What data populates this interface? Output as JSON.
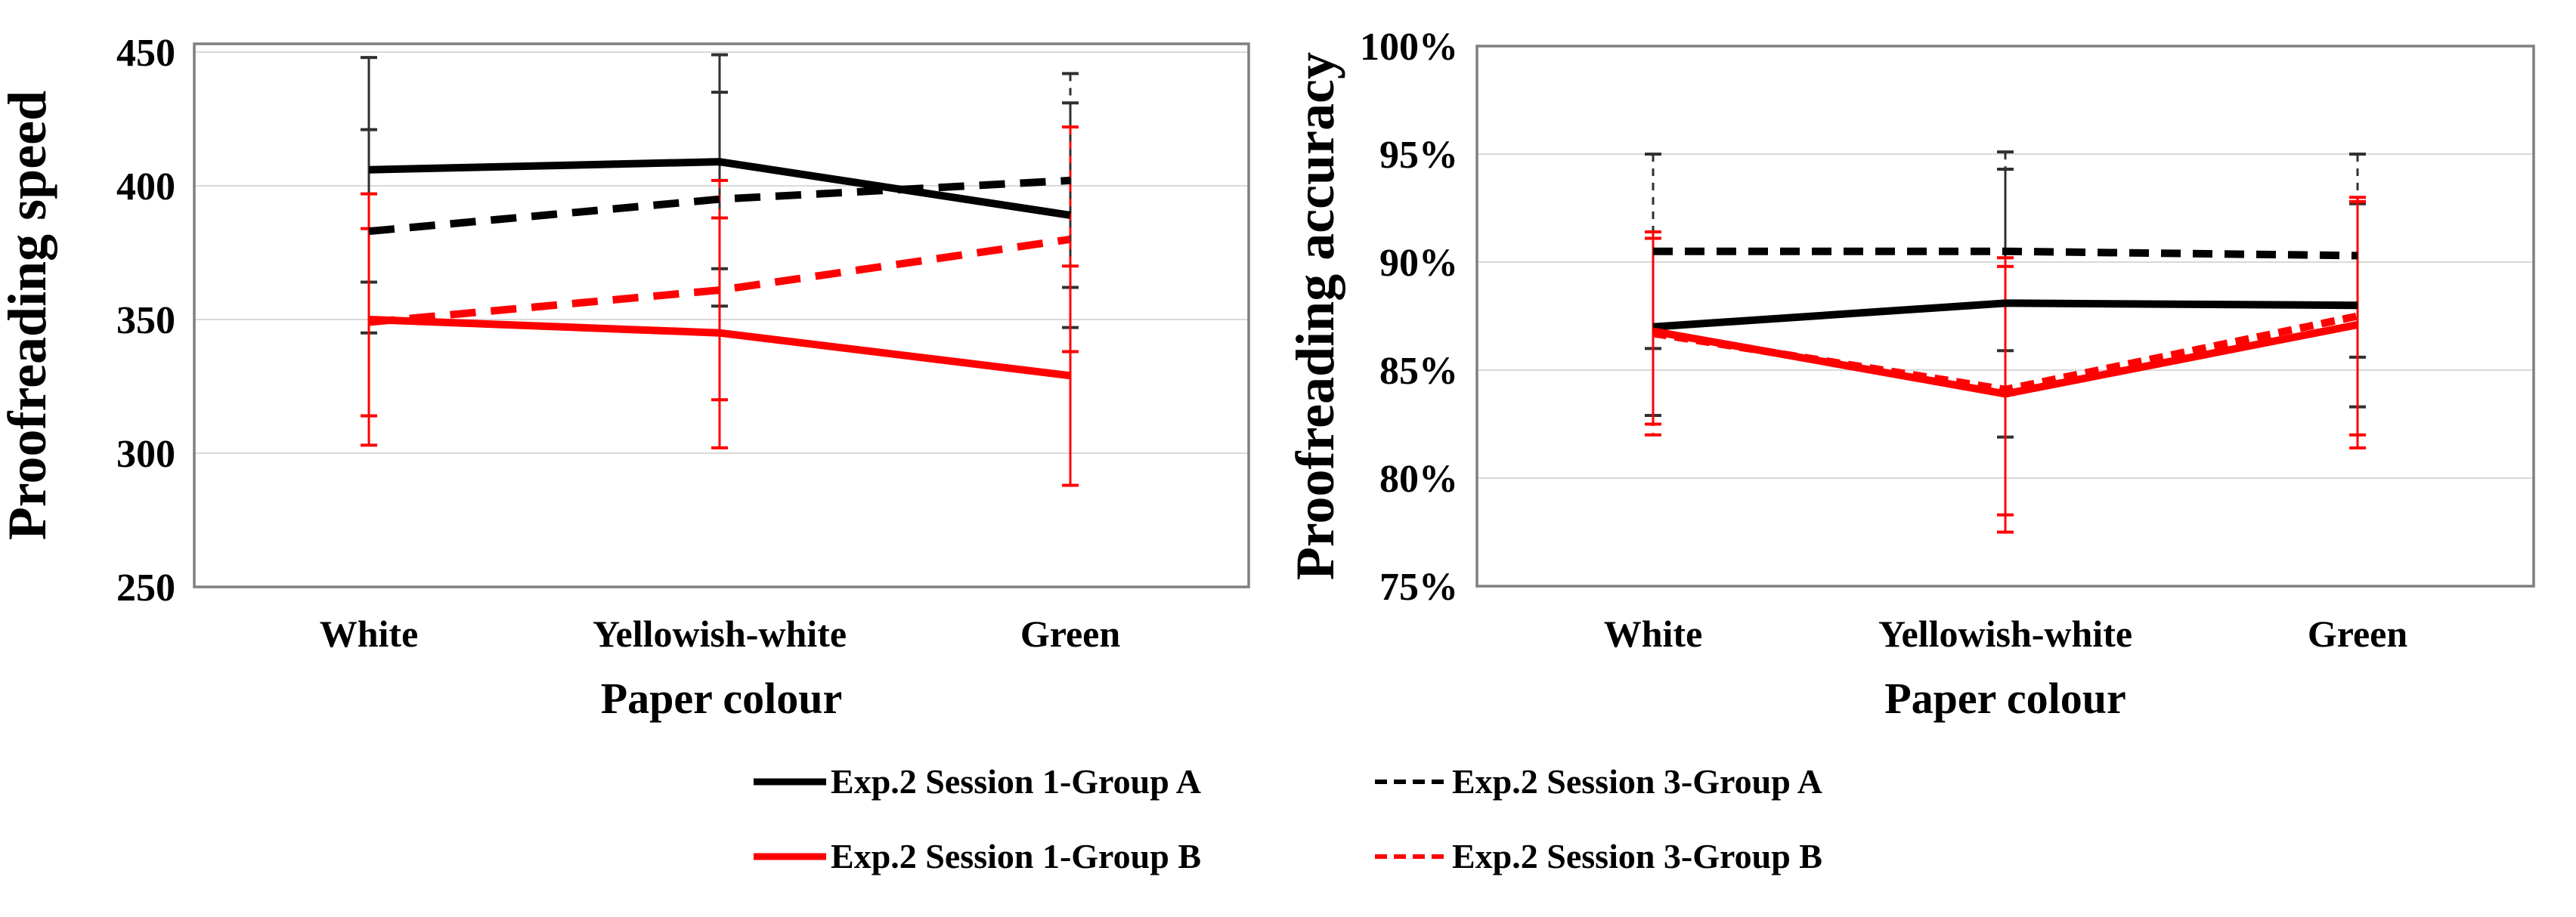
{
  "figure": {
    "background": "#ffffff"
  },
  "colors": {
    "series_black": "#000000",
    "series_red": "#ff0000",
    "error_black": "#303030",
    "error_red": "#ff0000",
    "gridline": "#d9d9d9",
    "plot_border": "#7f7f7f",
    "text": "#000000"
  },
  "legend": {
    "items": [
      {
        "label": "Exp.2 Session 1-Group A",
        "color": "#000000",
        "dash": "solid"
      },
      {
        "label": "Exp.2 Session 3-Group A",
        "color": "#000000",
        "dash": "dashed"
      },
      {
        "label": "Exp.2 Session 1-Group B",
        "color": "#ff0000",
        "dash": "solid"
      },
      {
        "label": "Exp.2 Session 3-Group B",
        "color": "#ff0000",
        "dash": "dashed"
      }
    ]
  },
  "chart_data": [
    {
      "type": "line",
      "title": "",
      "xlabel": "Paper colour",
      "ylabel": "Proofreading speed",
      "categories": [
        "White",
        "Yellowish-white",
        "Green"
      ],
      "ylim": [
        250,
        450
      ],
      "yticks": [
        450,
        400,
        350,
        300,
        250
      ],
      "ytick_labels": [
        "450",
        "400",
        "350",
        "300",
        "250"
      ],
      "grid": true,
      "legend_position": "shared-bottom",
      "error_bars": true,
      "series": [
        {
          "name": "Exp.2 Session 1-Group A",
          "color": "#000000",
          "style": "solid",
          "values": [
            406,
            409,
            389
          ],
          "err_lo": [
            364,
            369,
            347
          ],
          "err_hi": [
            448,
            449,
            431
          ]
        },
        {
          "name": "Exp.2 Session 3-Group A",
          "color": "#000000",
          "style": "dashed",
          "values": [
            383,
            395,
            402
          ],
          "err_lo": [
            345,
            355,
            362
          ],
          "err_hi": [
            421,
            435,
            442
          ]
        },
        {
          "name": "Exp.2 Session 1-Group B",
          "color": "#ff0000",
          "style": "solid",
          "values": [
            350,
            345,
            329
          ],
          "err_lo": [
            303,
            302,
            288
          ],
          "err_hi": [
            397,
            388,
            370
          ]
        },
        {
          "name": "Exp.2 Session 3-Group B",
          "color": "#ff0000",
          "style": "dashed",
          "values": [
            349,
            361,
            380
          ],
          "err_lo": [
            314,
            320,
            338
          ],
          "err_hi": [
            384,
            402,
            422
          ]
        }
      ]
    },
    {
      "type": "line",
      "title": "",
      "xlabel": "Paper colour",
      "ylabel": "Proofreading accuracy",
      "categories": [
        "White",
        "Yellowish-white",
        "Green"
      ],
      "ylim": [
        75,
        100
      ],
      "yticks": [
        100,
        95,
        90,
        85,
        80,
        75
      ],
      "ytick_labels": [
        "100%",
        "95%",
        "90%",
        "85%",
        "80%",
        "75%"
      ],
      "grid": true,
      "legend_position": "shared-bottom",
      "error_bars": true,
      "percent": true,
      "series": [
        {
          "name": "Exp.2 Session 1-Group A",
          "color": "#000000",
          "style": "solid",
          "values": [
            87.0,
            88.1,
            88.0
          ],
          "err_lo": [
            82.9,
            81.9,
            83.3
          ],
          "err_hi": [
            91.1,
            94.3,
            92.7
          ]
        },
        {
          "name": "Exp.2 Session 3-Group A",
          "color": "#000000",
          "style": "dashed",
          "values": [
            90.5,
            90.5,
            90.3
          ],
          "err_lo": [
            86.0,
            85.9,
            85.6
          ],
          "err_hi": [
            95.0,
            95.1,
            95.0
          ]
        },
        {
          "name": "Exp.2 Session 1-Group B",
          "color": "#ff0000",
          "style": "solid",
          "values": [
            86.8,
            83.9,
            87.1
          ],
          "err_lo": [
            82.5,
            77.5,
            81.4
          ],
          "err_hi": [
            91.1,
            90.2,
            92.8
          ]
        },
        {
          "name": "Exp.2 Session 3-Group B",
          "color": "#ff0000",
          "style": "dashed",
          "values": [
            86.7,
            84.1,
            87.5
          ],
          "err_lo": [
            82.0,
            78.3,
            82.0
          ],
          "err_hi": [
            91.4,
            89.8,
            93.0
          ]
        }
      ]
    }
  ]
}
